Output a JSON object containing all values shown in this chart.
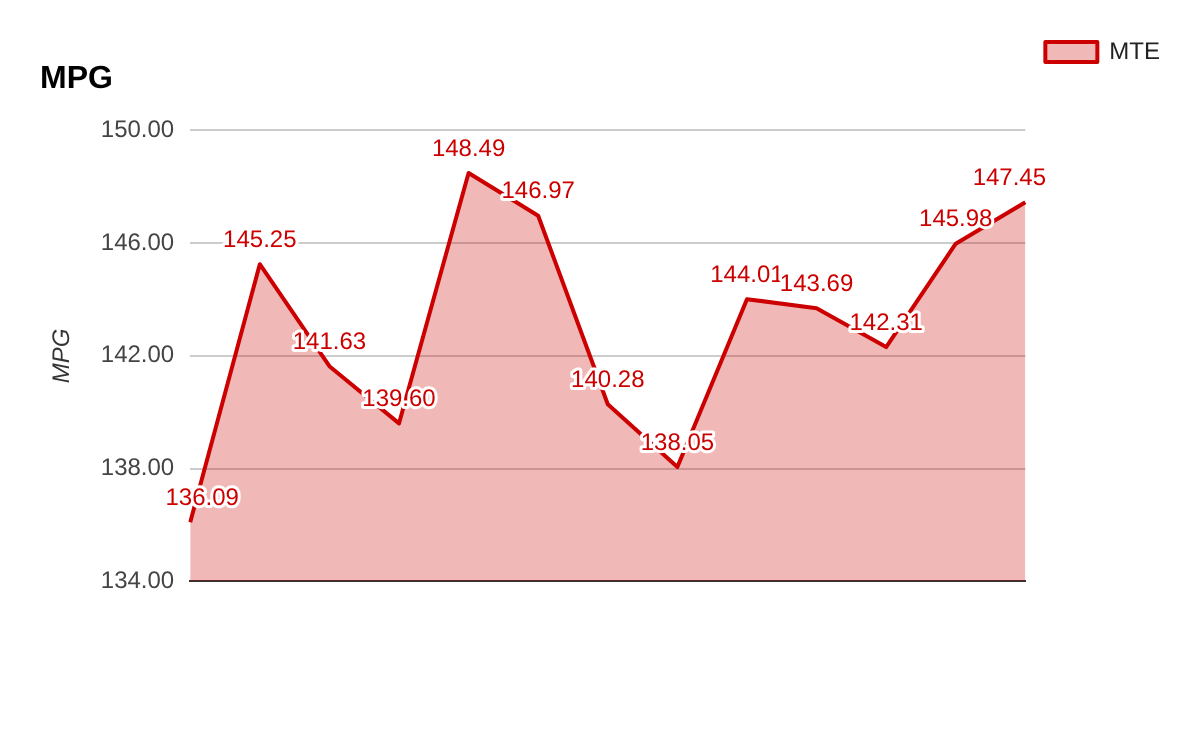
{
  "chart_data": {
    "type": "area",
    "title": "MPG",
    "ylabel": "MPG",
    "categories": [
      null,
      null,
      null,
      null,
      null,
      null,
      null,
      null,
      null,
      null,
      null,
      null,
      null
    ],
    "series": [
      {
        "name": "MTE",
        "color": "#cc0000",
        "values": [
          136.09,
          145.25,
          141.63,
          139.6,
          148.49,
          146.97,
          140.28,
          138.05,
          144.01,
          143.69,
          142.31,
          145.98,
          147.45
        ],
        "value_labels": [
          "136.09",
          "145.25",
          "141.63",
          "139.60",
          "148.49",
          "146.97",
          "140.28",
          "138.05",
          "144.01",
          "143.69",
          "142.31",
          "145.98",
          "147.45"
        ]
      }
    ],
    "ylim": [
      134,
      150
    ],
    "yticks": [
      {
        "value": 134,
        "label": "134.00"
      },
      {
        "value": 138,
        "label": "138.00"
      },
      {
        "value": 142,
        "label": "142.00"
      },
      {
        "value": 146,
        "label": "146.00"
      },
      {
        "value": 150,
        "label": "150.00"
      }
    ],
    "grid": "y",
    "legend": "top right",
    "marker": "none"
  }
}
